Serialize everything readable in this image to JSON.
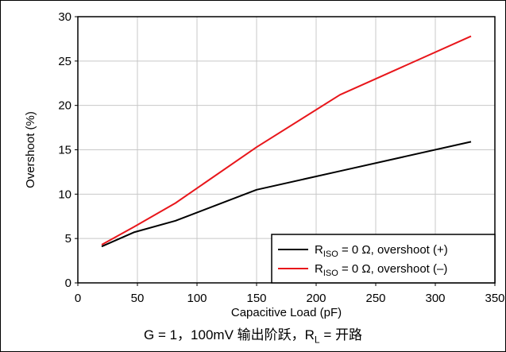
{
  "chart_data": {
    "type": "line",
    "xlabel": "Capacitive Load (pF)",
    "ylabel": "Overshoot (%)",
    "xlim": [
      0,
      350
    ],
    "ylim": [
      0,
      30
    ],
    "x_ticks": [
      0,
      50,
      100,
      150,
      200,
      250,
      300,
      350
    ],
    "y_ticks": [
      0,
      5,
      10,
      15,
      20,
      25,
      30
    ],
    "grid": true,
    "legend_position": "bottom-right",
    "series": [
      {
        "name_main": "R",
        "name_sub": "ISO",
        "name_rest": " = 0 Ω, overshoot (+)",
        "color": "#000000",
        "x": [
          20,
          47,
          82,
          150,
          220,
          330
        ],
        "y": [
          4.1,
          5.7,
          7.0,
          10.5,
          12.6,
          15.9
        ]
      },
      {
        "name_main": "R",
        "name_sub": "ISO",
        "name_rest": " = 0 Ω, overshoot (–)",
        "color": "#e8161b",
        "x": [
          20,
          47,
          82,
          150,
          220,
          330
        ],
        "y": [
          4.3,
          6.3,
          9.0,
          15.3,
          21.2,
          27.8
        ]
      }
    ]
  },
  "caption": {
    "pre": "G = 1，100mV 输出阶跃，R",
    "sub": "L",
    "post": " = 开路"
  }
}
